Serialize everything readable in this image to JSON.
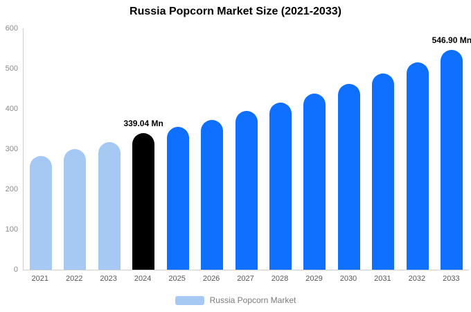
{
  "chart_data": {
    "type": "bar",
    "title": "Russia Popcorn Market Size (2021-2033)",
    "xlabel": "",
    "ylabel": "",
    "ylim": [
      0,
      600
    ],
    "yticks": [
      0,
      100,
      200,
      300,
      400,
      500,
      600
    ],
    "grid": false,
    "categories": [
      "2021",
      "2022",
      "2023",
      "2024",
      "2025",
      "2026",
      "2027",
      "2028",
      "2029",
      "2030",
      "2031",
      "2032",
      "2033"
    ],
    "values": [
      283,
      300,
      317,
      339.04,
      355,
      373,
      394,
      416,
      438,
      462,
      488,
      515,
      546.9
    ],
    "colors": [
      "#A6C9F3",
      "#A6C9F3",
      "#A6C9F3",
      "#000000",
      "#0F6FFF",
      "#0F6FFF",
      "#0F6FFF",
      "#0F6FFF",
      "#0F6FFF",
      "#0F6FFF",
      "#0F6FFF",
      "#0F6FFF",
      "#0F6FFF"
    ],
    "annotations": [
      {
        "index": 3,
        "text": "339.04 Mn"
      },
      {
        "index": 12,
        "text": "546.90 Mn"
      }
    ],
    "legend": {
      "label": "Russia Popcorn Market",
      "color": "#A6C9F3",
      "position": "bottom"
    }
  }
}
